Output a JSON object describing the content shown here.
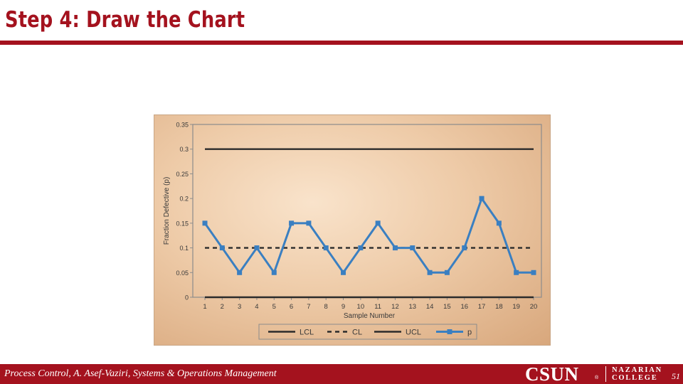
{
  "slide": {
    "title": "Step 4: Draw the Chart"
  },
  "footer": {
    "text": "Process Control, A. Asef-Vaziri, Systems & Operations Management",
    "logo_main": "CSUN",
    "logo_mark": "®",
    "logo_line1": "NAZARIAN",
    "logo_line2": "COLLEGE",
    "page_number": "51"
  },
  "colors": {
    "brand": "#a4121e",
    "series_p": "#3a7fc1",
    "limit_lines": "#2b2b2b"
  },
  "chart_data": {
    "type": "line",
    "title": "",
    "xlabel": "Sample Number",
    "ylabel": "Fraction Defective (p)",
    "x": [
      1,
      2,
      3,
      4,
      5,
      6,
      7,
      8,
      9,
      10,
      11,
      12,
      13,
      14,
      15,
      16,
      17,
      18,
      19,
      20
    ],
    "xlim": [
      1,
      20
    ],
    "ylim": [
      0,
      0.35
    ],
    "yticks": [
      "0",
      "0.05",
      "0.1",
      "0.15",
      "0.2",
      "0.25",
      "0.3",
      "0.35"
    ],
    "grid": false,
    "legend_position": "bottom",
    "series": [
      {
        "name": "LCL",
        "style": "solid",
        "values": [
          0,
          0,
          0,
          0,
          0,
          0,
          0,
          0,
          0,
          0,
          0,
          0,
          0,
          0,
          0,
          0,
          0,
          0,
          0,
          0
        ]
      },
      {
        "name": "CL",
        "style": "dashed",
        "values": [
          0.1,
          0.1,
          0.1,
          0.1,
          0.1,
          0.1,
          0.1,
          0.1,
          0.1,
          0.1,
          0.1,
          0.1,
          0.1,
          0.1,
          0.1,
          0.1,
          0.1,
          0.1,
          0.1,
          0.1
        ]
      },
      {
        "name": "UCL",
        "style": "solid",
        "values": [
          0.3,
          0.3,
          0.3,
          0.3,
          0.3,
          0.3,
          0.3,
          0.3,
          0.3,
          0.3,
          0.3,
          0.3,
          0.3,
          0.3,
          0.3,
          0.3,
          0.3,
          0.3,
          0.3,
          0.3
        ]
      },
      {
        "name": "p",
        "style": "markers",
        "values": [
          0.15,
          0.1,
          0.05,
          0.1,
          0.05,
          0.15,
          0.15,
          0.1,
          0.05,
          0.1,
          0.15,
          0.1,
          0.1,
          0.05,
          0.05,
          0.1,
          0.2,
          0.15,
          0.05,
          0.05
        ]
      }
    ]
  }
}
